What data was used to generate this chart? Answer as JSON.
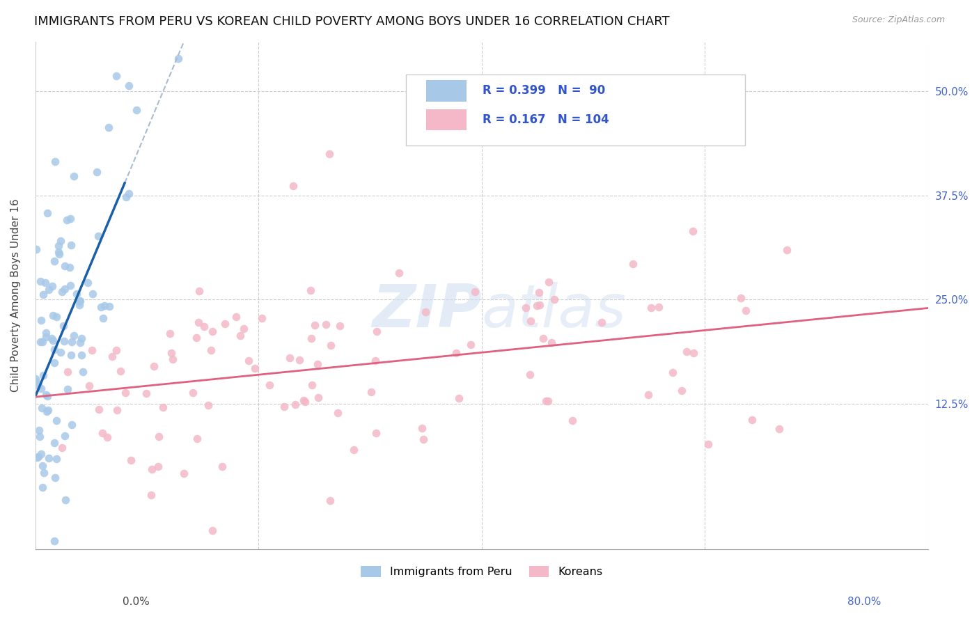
{
  "title": "IMMIGRANTS FROM PERU VS KOREAN CHILD POVERTY AMONG BOYS UNDER 16 CORRELATION CHART",
  "source": "Source: ZipAtlas.com",
  "ylabel": "Child Poverty Among Boys Under 16",
  "yticks": [
    0.0,
    0.125,
    0.25,
    0.375,
    0.5
  ],
  "ytick_labels": [
    "",
    "12.5%",
    "25.0%",
    "37.5%",
    "50.0%"
  ],
  "xlim": [
    0.0,
    0.8
  ],
  "ylim": [
    -0.05,
    0.56
  ],
  "blue_color": "#a8c8e8",
  "pink_color": "#f4b8c8",
  "blue_line_color": "#1a5fa8",
  "pink_line_color": "#e06080",
  "dashed_line_color": "#aabbd0",
  "watermark_color": "#d0dff0",
  "seed": 12345,
  "peru_n": 90,
  "korean_n": 104,
  "grid_color": "#cccccc",
  "background_color": "#ffffff",
  "title_fontsize": 13,
  "axis_label_fontsize": 11,
  "tick_fontsize": 11,
  "legend_r1": "R = 0.399",
  "legend_n1": "N =  90",
  "legend_r2": "R = 0.167",
  "legend_n2": "N = 104"
}
